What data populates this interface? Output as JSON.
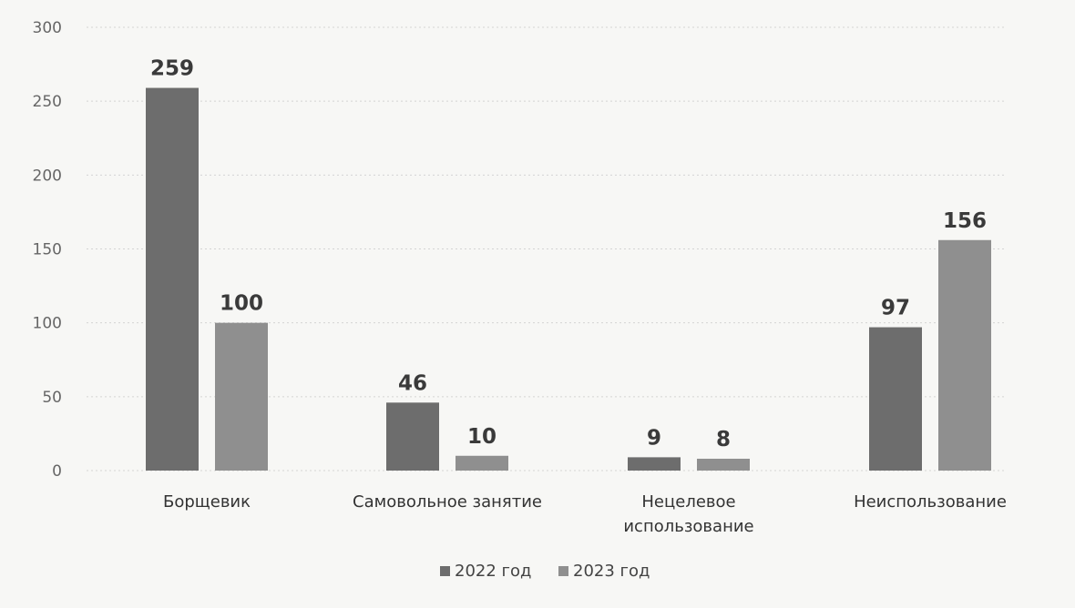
{
  "chart_data": {
    "type": "bar",
    "title": "",
    "xlabel": "",
    "ylabel": "",
    "ylim": [
      0,
      300
    ],
    "yticks": [
      0,
      50,
      100,
      150,
      200,
      250,
      300
    ],
    "grid": true,
    "legend_position": "bottom",
    "categories": [
      [
        "Борщевик"
      ],
      [
        "Самовольное занятие"
      ],
      [
        "Нецелевое",
        "использование"
      ],
      [
        "Неиспользование"
      ]
    ],
    "series": [
      {
        "name": "2022 год",
        "color": "#6d6d6d",
        "values": [
          259,
          46,
          9,
          97
        ]
      },
      {
        "name": "2023 год",
        "color": "#8f8f8f",
        "values": [
          100,
          10,
          8,
          156
        ]
      }
    ]
  }
}
